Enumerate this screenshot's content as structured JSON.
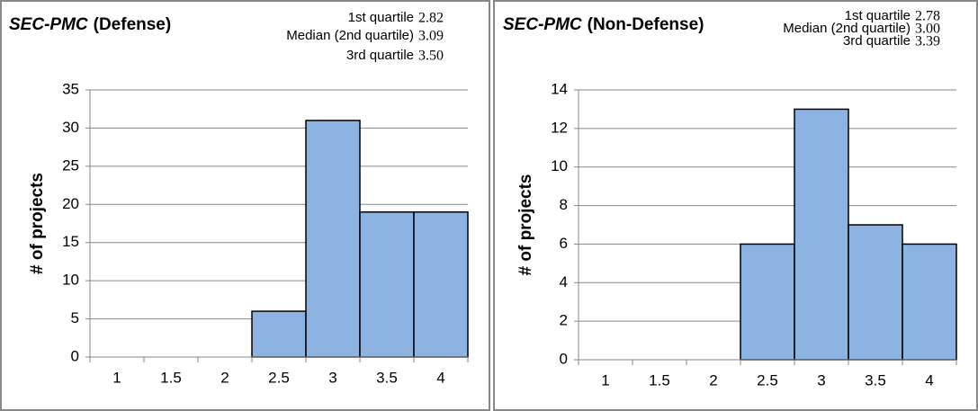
{
  "chart_data": [
    {
      "type": "bar",
      "title_parts": [
        "SEC-PMC",
        "(Defense)"
      ],
      "annotations": [
        {
          "text": "1st quartile",
          "value": 2.82
        },
        {
          "text": "Median (2nd quartile)",
          "value": 3.09
        },
        {
          "text": "3rd quartile",
          "value": 3.5,
          "value_label": "3.50"
        }
      ],
      "y_label": "# of projects",
      "categories": [
        "1",
        "1.5",
        "2",
        "2.5",
        "3",
        "3.5",
        "4"
      ],
      "values": [
        0,
        0,
        0,
        6,
        31,
        19,
        19
      ],
      "color": "#8db3e2",
      "ylim": [
        0,
        35
      ],
      "yticks": [
        0,
        5,
        10,
        15,
        20,
        25,
        30,
        35
      ],
      "grid": true
    },
    {
      "type": "bar",
      "title_parts": [
        "SEC-PMC",
        "(Non-Defense)"
      ],
      "annotations": [
        {
          "text": "1st quartile",
          "value": 2.78
        },
        {
          "text": "Median (2nd quartile)",
          "value": 3,
          "value_label": "3.00"
        },
        {
          "text": "3rd quartile",
          "value": 3.39
        }
      ],
      "y_label": "# of projects",
      "categories": [
        "1",
        "1.5",
        "2",
        "2.5",
        "3",
        "3.5",
        "4"
      ],
      "values": [
        0,
        0,
        0,
        6,
        13,
        7,
        6
      ],
      "color": "#8db3e2",
      "ylim": [
        0,
        14
      ],
      "yticks": [
        0,
        2,
        4,
        6,
        8,
        10,
        12,
        14
      ],
      "grid": true
    }
  ]
}
